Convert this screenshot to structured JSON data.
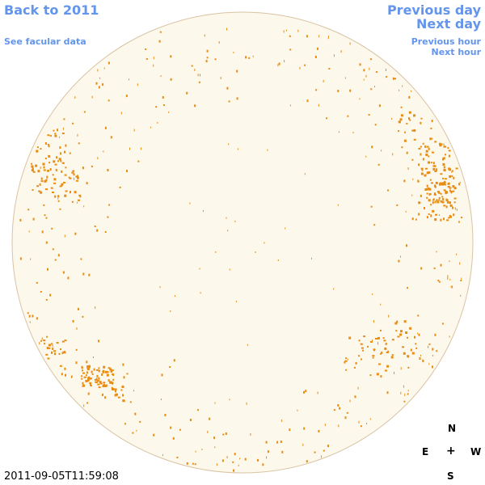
{
  "nav": {
    "back": "Back to 2011",
    "facular": "See facular data",
    "prev_day": "Previous day",
    "next_day": "Next day",
    "prev_hour": "Previous hour",
    "next_hour": "Next hour"
  },
  "compass": {
    "north": "N",
    "east": "E",
    "center": "+",
    "west": "W",
    "south": "S"
  },
  "timestamp": "2011-09-05T11:59:08",
  "colors": {
    "link": "#6495ed",
    "disk": "#fdf8ec",
    "limb": "#d9c3a3",
    "facula": "#e88c12"
  }
}
